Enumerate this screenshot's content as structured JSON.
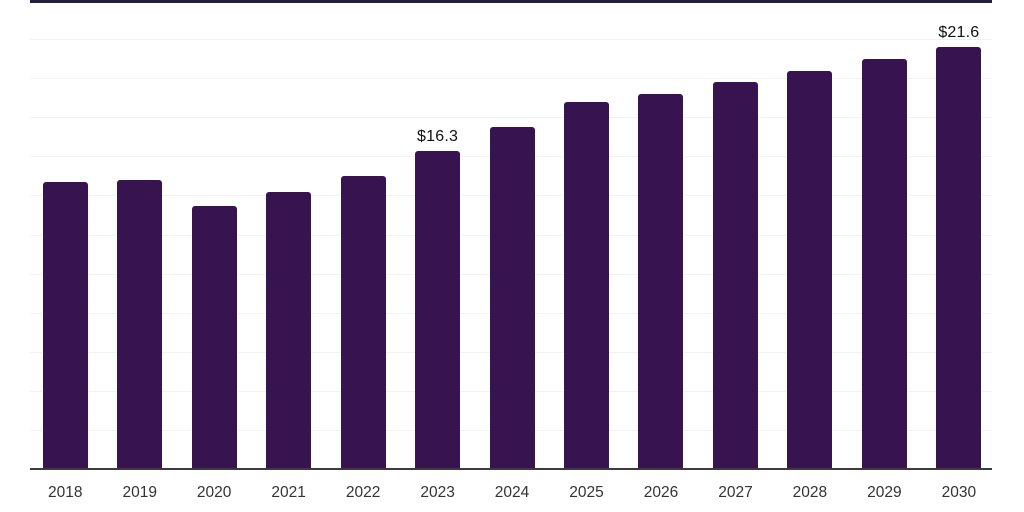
{
  "chart_data": {
    "type": "bar",
    "title": "",
    "xlabel": "",
    "ylabel": "",
    "categories": [
      "2018",
      "2019",
      "2020",
      "2021",
      "2022",
      "2023",
      "2024",
      "2025",
      "2026",
      "2027",
      "2028",
      "2029",
      "2030"
    ],
    "values": [
      14.7,
      14.8,
      13.5,
      14.2,
      15.0,
      16.3,
      17.5,
      18.8,
      19.2,
      19.8,
      20.4,
      21.0,
      21.6
    ],
    "bar_labels": [
      "",
      "",
      "",
      "",
      "",
      "$16.3",
      "",
      "",
      "",
      "",
      "",
      "",
      "$21.6"
    ],
    "ylim": [
      0,
      24
    ],
    "gridline_step": 2,
    "grid": true,
    "legend": "none",
    "colors": {
      "bar": "#371450",
      "gridline": "#f2f2f5",
      "top_border": "#26203c",
      "axis_line": "#3c3c3c",
      "value_label": "#111111",
      "tick_label": "#333333",
      "background": "#ffffff"
    }
  }
}
